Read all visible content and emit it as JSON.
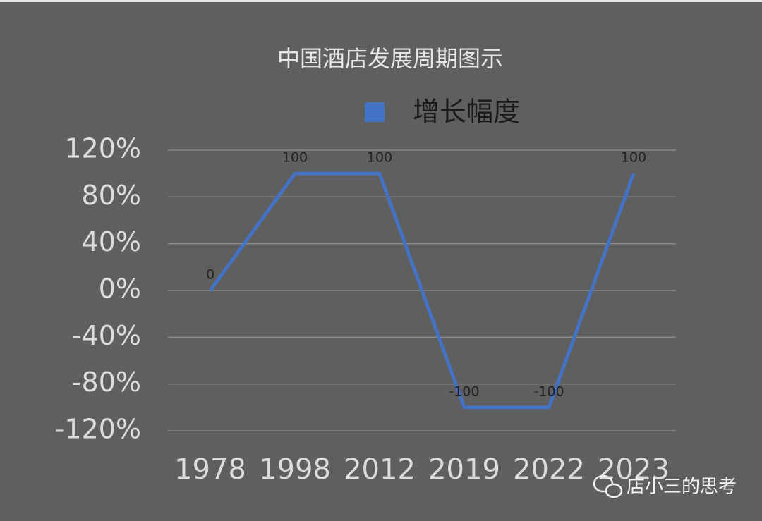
{
  "chart_data": {
    "type": "line",
    "title": "中国酒店发展周期图示",
    "categories": [
      "1978",
      "1998",
      "2012",
      "2019",
      "2022",
      "2023"
    ],
    "series": [
      {
        "name": "增长幅度",
        "color": "#4472c4",
        "values": [
          0,
          100,
          100,
          -100,
          -100,
          100
        ]
      }
    ],
    "ylim": [
      -120,
      120
    ],
    "yticks": [
      {
        "value": -120,
        "label": "-120%"
      },
      {
        "value": -80,
        "label": "-80%"
      },
      {
        "value": -40,
        "label": "-40%"
      },
      {
        "value": 0,
        "label": "0%"
      },
      {
        "value": 40,
        "label": "40%"
      },
      {
        "value": 80,
        "label": "80%"
      },
      {
        "value": 120,
        "label": "120%"
      }
    ],
    "grid": true,
    "legend": "top"
  },
  "watermark": "店小三的思考"
}
